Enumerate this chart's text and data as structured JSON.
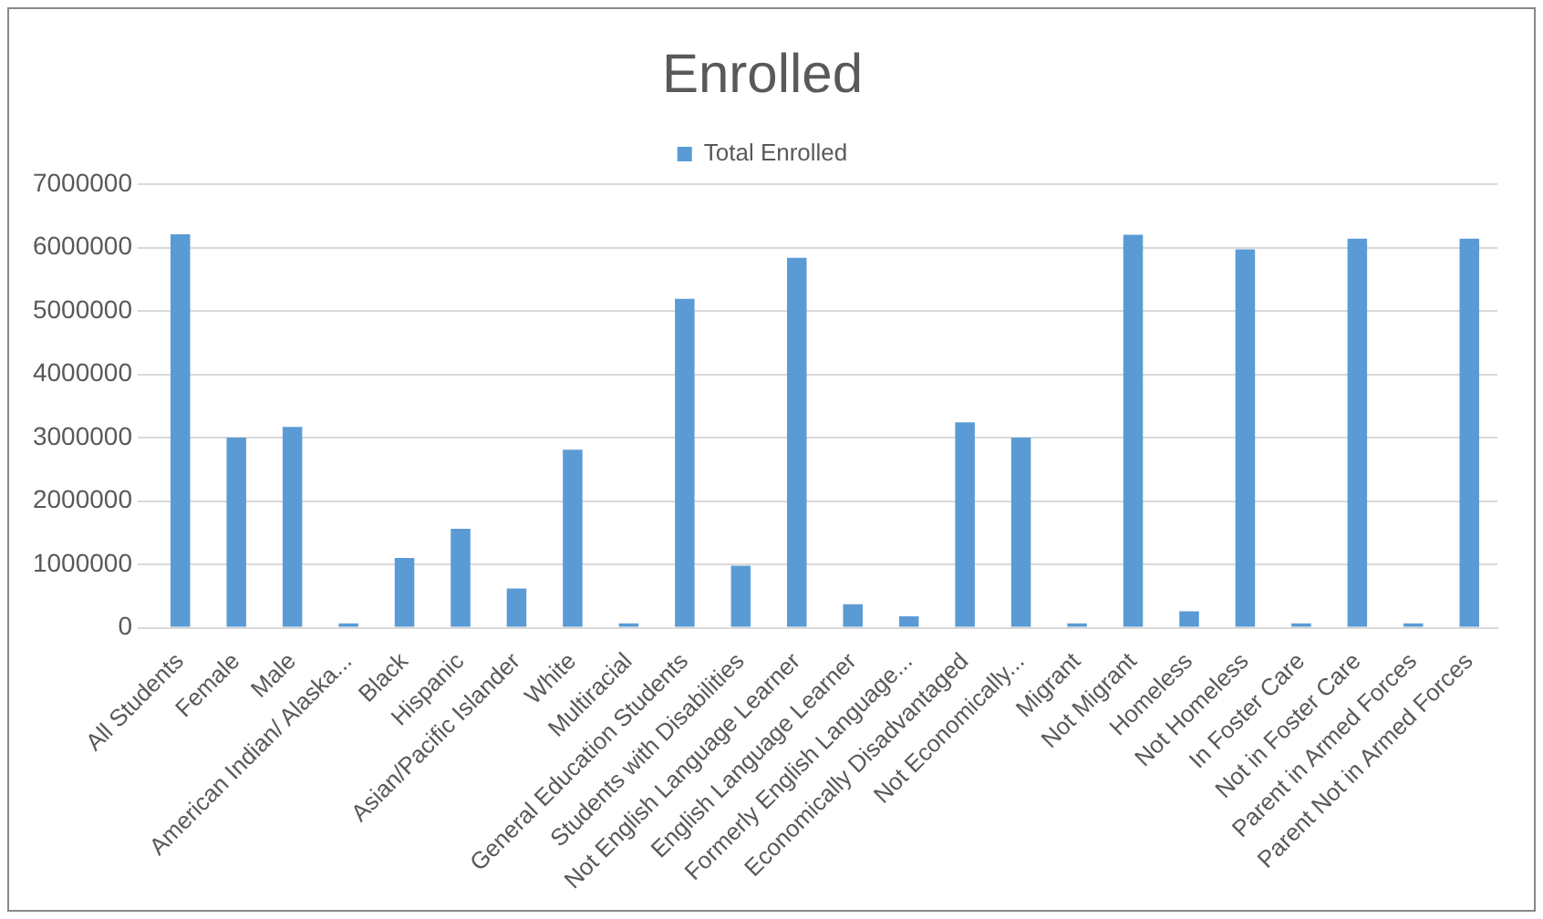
{
  "chart_data": {
    "type": "bar",
    "title": "Enrolled",
    "categories": [
      "All Students",
      "Female",
      "Male",
      "American Indian/ Alaska...",
      "Black",
      "Hispanic",
      "Asian/Pacific Islander",
      "White",
      "Multiracial",
      "General Education Students",
      "Students with Disabilities",
      "Not English Language Learner",
      "English Language Learner",
      "Formerly English Language...",
      "Economically Disadvantaged",
      "Not Economically...",
      "Migrant",
      "Not Migrant",
      "Homeless",
      "Not Homeless",
      "In Foster Care",
      "Not in Foster Care",
      "Parent in Armed Forces",
      "Parent Not in Armed Forces"
    ],
    "series": [
      {
        "name": "Total Enrolled",
        "color": "#5b9bd5",
        "values": [
          6210000,
          3000000,
          3170000,
          70000,
          1100000,
          1560000,
          620000,
          2810000,
          70000,
          5190000,
          980000,
          5840000,
          370000,
          180000,
          3240000,
          3000000,
          70000,
          6200000,
          260000,
          5970000,
          70000,
          6140000,
          70000,
          6140000
        ]
      }
    ],
    "ylim": [
      0,
      7000000
    ],
    "yticks": [
      0,
      1000000,
      2000000,
      3000000,
      4000000,
      5000000,
      6000000,
      7000000
    ],
    "grid": "y",
    "legend": "top"
  }
}
